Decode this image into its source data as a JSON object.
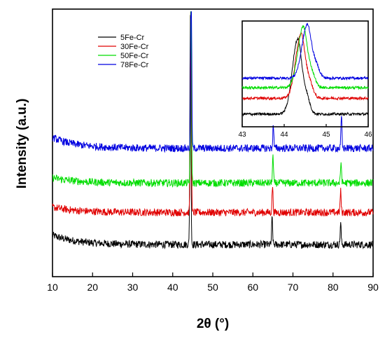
{
  "chart_data": [
    {
      "type": "line",
      "title": "",
      "xlabel": "2θ (°)",
      "ylabel": "Intensity (a.u.)",
      "xlim": [
        10,
        90
      ],
      "xticks": [
        10,
        20,
        30,
        40,
        50,
        60,
        70,
        80,
        90
      ],
      "yticks_shown": false,
      "grid": false,
      "legend_position": "top-left",
      "series": [
        {
          "name": "5Fe-Cr",
          "color": "#000000",
          "baseline": 0.12,
          "slope_from": 0.155,
          "peaks": [
            {
              "x": 44.4,
              "height": 0.85
            },
            {
              "x": 64.8,
              "height": 0.1
            },
            {
              "x": 81.9,
              "height": 0.08
            }
          ]
        },
        {
          "name": "30Fe-Cr",
          "color": "#e00000",
          "baseline": 0.24,
          "slope_from": 0.26,
          "peaks": [
            {
              "x": 44.5,
              "height": 0.8
            },
            {
              "x": 64.9,
              "height": 0.1
            },
            {
              "x": 81.9,
              "height": 0.08
            }
          ]
        },
        {
          "name": "50Fe-Cr",
          "color": "#00dd00",
          "baseline": 0.35,
          "slope_from": 0.37,
          "peaks": [
            {
              "x": 44.55,
              "height": 0.72
            },
            {
              "x": 65.0,
              "height": 0.1
            },
            {
              "x": 82.0,
              "height": 0.08
            }
          ]
        },
        {
          "name": "78Fe-Cr",
          "color": "#0000e0",
          "baseline": 0.48,
          "slope_from": 0.52,
          "peaks": [
            {
              "x": 44.6,
              "height": 0.72
            },
            {
              "x": 65.1,
              "height": 0.09
            },
            {
              "x": 82.1,
              "height": 0.12
            }
          ]
        }
      ]
    },
    {
      "type": "line",
      "title": "",
      "inset": true,
      "xlabel": "",
      "ylabel": "",
      "xlim": [
        43,
        46
      ],
      "xticks": [
        43,
        44,
        45,
        46
      ],
      "series": [
        {
          "name": "5Fe-Cr",
          "color": "#000000",
          "baseline": 0.12,
          "peak_x": 44.32,
          "peak_height": 0.7
        },
        {
          "name": "30Fe-Cr",
          "color": "#e00000",
          "baseline": 0.27,
          "peak_x": 44.4,
          "peak_height": 0.6
        },
        {
          "name": "50Fe-Cr",
          "color": "#00dd00",
          "baseline": 0.37,
          "peak_x": 44.45,
          "peak_height": 0.57
        },
        {
          "name": "78Fe-Cr",
          "color": "#0000e0",
          "baseline": 0.46,
          "peak_x": 44.55,
          "peak_height": 0.5
        }
      ]
    }
  ]
}
